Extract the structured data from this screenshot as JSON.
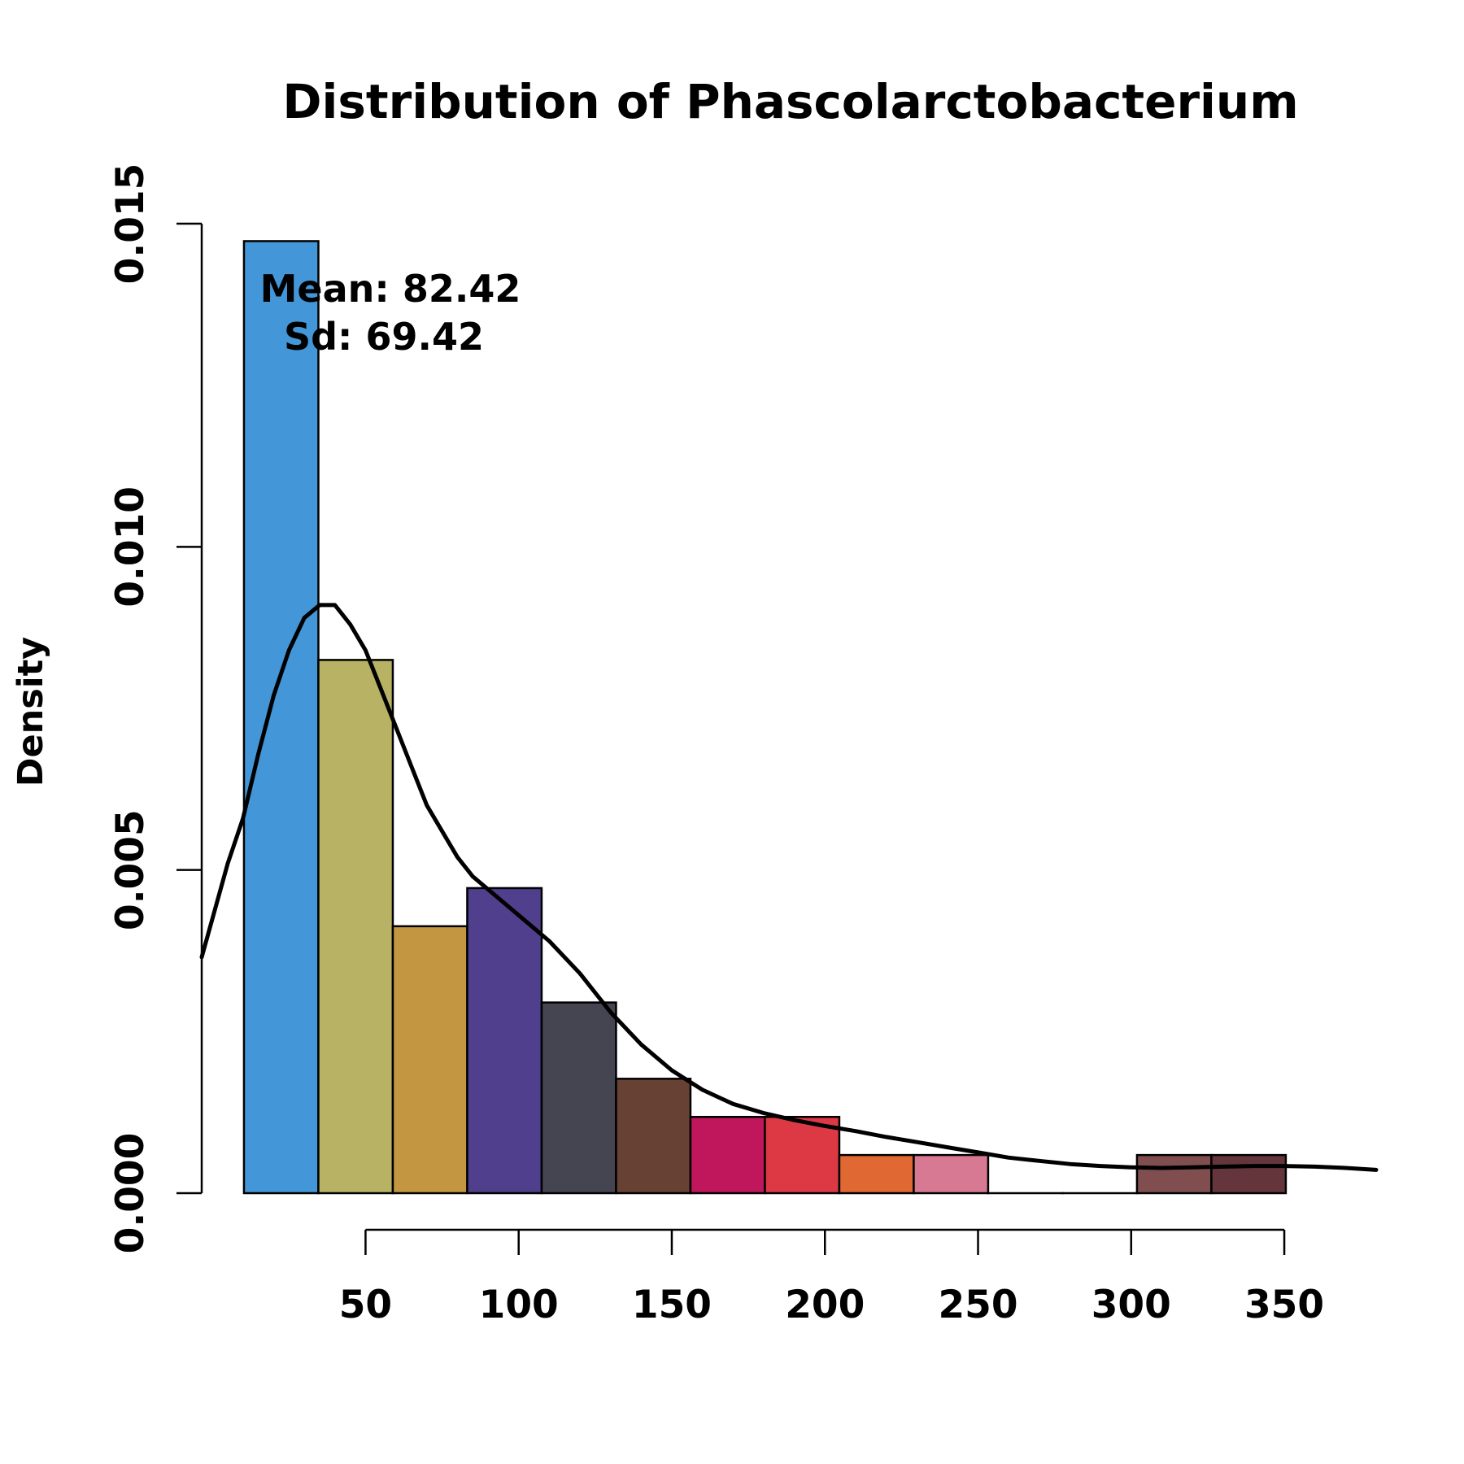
{
  "chart_data": {
    "type": "bar",
    "title": "Distribution of Phascolarctobacterium",
    "xlabel": "",
    "ylabel": "Density",
    "xlim": [
      -3.5,
      380
    ],
    "ylim": [
      0,
      0.015
    ],
    "x_ticks": [
      50,
      100,
      150,
      200,
      250,
      300,
      350
    ],
    "x_tick_labels": [
      "50",
      "100",
      "150",
      "200",
      "250",
      "300",
      "350"
    ],
    "y_ticks": [
      0,
      0.005,
      0.01,
      0.015
    ],
    "y_tick_labels": [
      "0.000",
      "0.005",
      "0.010",
      "0.015"
    ],
    "grid": false,
    "bins": [
      {
        "x0": 10.3,
        "x1": 34.6,
        "density": 0.01473,
        "color": "#4396d8"
      },
      {
        "x0": 34.6,
        "x1": 58.9,
        "density": 0.00825,
        "color": "#b8b264"
      },
      {
        "x0": 58.9,
        "x1": 83.2,
        "density": 0.00413,
        "color": "#c39641"
      },
      {
        "x0": 83.2,
        "x1": 107.5,
        "density": 0.00472,
        "color": "#503f8c"
      },
      {
        "x0": 107.5,
        "x1": 131.8,
        "density": 0.00295,
        "color": "#454451"
      },
      {
        "x0": 131.8,
        "x1": 156.1,
        "density": 0.00177,
        "color": "#674134"
      },
      {
        "x0": 156.1,
        "x1": 180.4,
        "density": 0.00118,
        "color": "#bf165c"
      },
      {
        "x0": 180.4,
        "x1": 204.7,
        "density": 0.00118,
        "color": "#dd3944"
      },
      {
        "x0": 204.7,
        "x1": 229.0,
        "density": 0.00059,
        "color": "#e06933"
      },
      {
        "x0": 229.0,
        "x1": 253.3,
        "density": 0.00059,
        "color": "#d87993"
      },
      {
        "x0": 253.3,
        "x1": 277.6,
        "density": 0.0,
        "color": "#ffffff"
      },
      {
        "x0": 277.6,
        "x1": 301.9,
        "density": 0.0,
        "color": "#ffffff"
      },
      {
        "x0": 301.9,
        "x1": 326.2,
        "density": 0.00059,
        "color": "#814e50"
      },
      {
        "x0": 326.2,
        "x1": 350.5,
        "density": 0.00059,
        "color": "#64353b"
      }
    ],
    "density_curve": {
      "x": [
        -3.5,
        5,
        10,
        15,
        20,
        25,
        30,
        35,
        40,
        45,
        50,
        55,
        60,
        65,
        70,
        75,
        80,
        85,
        90,
        95,
        100,
        110,
        120,
        130,
        140,
        150,
        160,
        170,
        180,
        190,
        200,
        210,
        220,
        230,
        240,
        250,
        260,
        270,
        280,
        290,
        300,
        310,
        320,
        330,
        340,
        350,
        360,
        370,
        380
      ],
      "y": [
        0.00365,
        0.0051,
        0.0058,
        0.0068,
        0.0077,
        0.0084,
        0.0089,
        0.0091,
        0.0091,
        0.0088,
        0.0084,
        0.0078,
        0.0072,
        0.0066,
        0.006,
        0.0056,
        0.0052,
        0.0049,
        0.0047,
        0.0045,
        0.0043,
        0.0039,
        0.0034,
        0.0028,
        0.0023,
        0.0019,
        0.0016,
        0.00138,
        0.00124,
        0.00113,
        0.00104,
        0.00096,
        0.00087,
        0.00079,
        0.00071,
        0.00063,
        0.00055,
        0.0005,
        0.00045,
        0.00042,
        0.0004,
        0.00039,
        0.0004,
        0.00041,
        0.00042,
        0.00042,
        0.00041,
        0.00039,
        0.00036
      ]
    },
    "annotations": [
      "Mean: 82.42",
      "Sd: 69.42"
    ]
  }
}
